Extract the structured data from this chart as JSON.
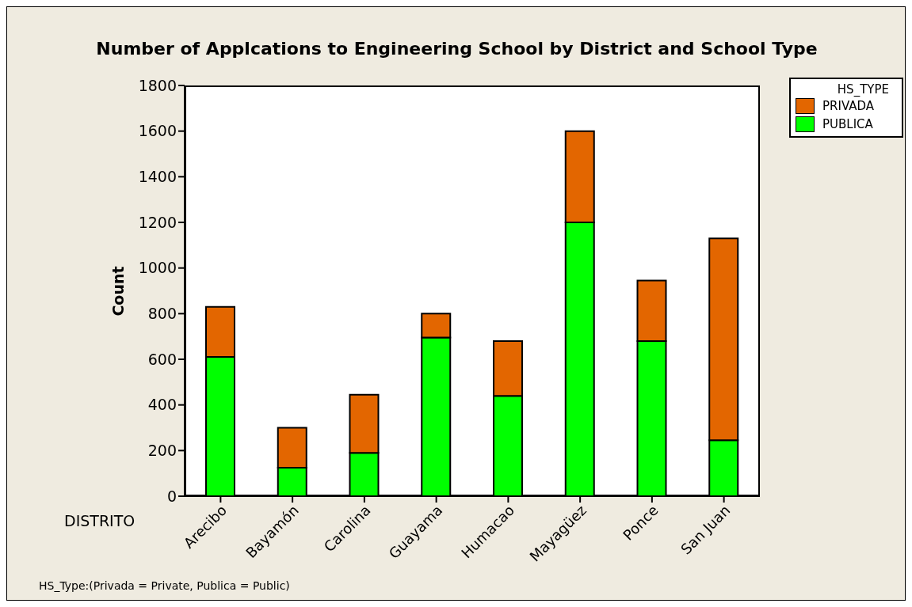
{
  "chart_data": {
    "type": "bar",
    "title": "Number of Applcations to Engineering School by District and School Type",
    "xlabel": "DISTRITO",
    "ylabel": "Count",
    "legend_title": "HS_TYPE",
    "annotations": [
      "HS_Type:(Privada = Private, Publica = Public)"
    ],
    "categories": [
      "Arecibo",
      "Bayamón",
      "Carolina",
      "Guayama",
      "Humacao",
      "Mayagüez",
      "Ponce",
      "San Juan"
    ],
    "stacked": true,
    "series": [
      {
        "name": "PUBLICA",
        "color": "#00ff00",
        "values": [
          610,
          125,
          190,
          695,
          440,
          1200,
          680,
          245
        ]
      },
      {
        "name": "PRIVADA",
        "color": "#e36600",
        "values": [
          220,
          175,
          255,
          105,
          240,
          400,
          265,
          885
        ]
      }
    ],
    "ylim": [
      0,
      1800
    ],
    "yticks": [
      0,
      200,
      400,
      600,
      800,
      1000,
      1200,
      1400,
      1600,
      1800
    ],
    "grid": false,
    "legend": "top right"
  }
}
